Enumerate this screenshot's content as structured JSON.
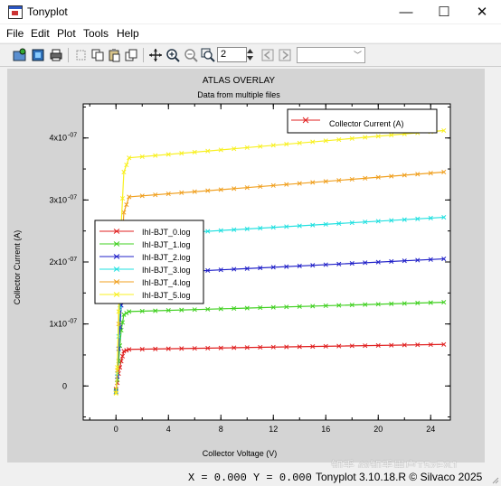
{
  "window": {
    "title": "Tonyplot",
    "minimize": "—",
    "maximize": "☐",
    "close": "✕"
  },
  "menu": [
    "File",
    "Edit",
    "Plot",
    "Tools",
    "Help"
  ],
  "toolbar": {
    "zoom_value": "2",
    "combo_value": ""
  },
  "plot": {
    "title": "ATLAS OVERLAY",
    "subtitle": "Data from multiple files"
  },
  "legend_top": {
    "label": "Collector Current (A)"
  },
  "status": {
    "coords": "X = 0.000 Y = 0.000",
    "copyright": "Tonyplot 3.10.18.R © Silvaco 2025"
  },
  "watermark": "知乎 @知乎用户T5zE8J",
  "colors": {
    "IhI-BJT_0.log": "#e02020",
    "IhI-BJT_1.log": "#40d020",
    "IhI-BJT_2.log": "#2020c8",
    "IhI-BJT_3.log": "#20e0e0",
    "IhI-BJT_4.log": "#f0a020",
    "IhI-BJT_5.log": "#f8f020"
  },
  "chart_data": {
    "type": "line",
    "title": "ATLAS OVERLAY",
    "subtitle": "Data from multiple files",
    "xlabel": "Collector Voltage (V)",
    "ylabel": "Collector Current (A)",
    "xlim": [
      -2.5,
      25.5
    ],
    "ylim": [
      -5.5e-08,
      4.55e-07
    ],
    "x_ticks": [
      0,
      4,
      8,
      12,
      16,
      20,
      24
    ],
    "y_ticks": [
      {
        "value": 0,
        "label": "0"
      },
      {
        "value": 1e-07,
        "label": "1x10"
      },
      {
        "value": 2e-07,
        "label": "2x10"
      },
      {
        "value": 3e-07,
        "label": "3x10"
      },
      {
        "value": 4e-07,
        "label": "4x10"
      }
    ],
    "y_tick_exponent": "-07",
    "grid": false,
    "series": [
      {
        "name": "IhI-BJT_0.log",
        "color": "#e02020",
        "x": [
          0,
          0.1,
          0.2,
          0.4,
          0.6,
          1,
          25
        ],
        "y": [
          -5e-09,
          5e-09,
          2e-08,
          4e-08,
          5.6e-08,
          5.9e-08,
          6.7e-08
        ]
      },
      {
        "name": "IhI-BJT_1.log",
        "color": "#40d020",
        "x": [
          0,
          0.1,
          0.2,
          0.4,
          0.6,
          1,
          25
        ],
        "y": [
          -7e-09,
          1e-08,
          4e-08,
          9e-08,
          1.15e-07,
          1.2e-07,
          1.35e-07
        ]
      },
      {
        "name": "IhI-BJT_2.log",
        "color": "#2020c8",
        "x": [
          0,
          0.1,
          0.2,
          0.4,
          0.6,
          1,
          25
        ],
        "y": [
          -9e-09,
          1.5e-08,
          6e-08,
          1.3e-07,
          1.7e-07,
          1.8e-07,
          2.05e-07
        ]
      },
      {
        "name": "IhI-BJT_3.log",
        "color": "#20e0e0",
        "x": [
          0,
          0.1,
          0.2,
          0.4,
          0.6,
          1,
          25
        ],
        "y": [
          -1e-08,
          2e-08,
          8e-08,
          1.7e-07,
          2.25e-07,
          2.42e-07,
          2.72e-07
        ]
      },
      {
        "name": "IhI-BJT_4.log",
        "color": "#f0a020",
        "x": [
          0,
          0.1,
          0.2,
          0.4,
          0.6,
          1,
          25
        ],
        "y": [
          -1.1e-08,
          2.5e-08,
          1e-07,
          2.1e-07,
          2.8e-07,
          3.05e-07,
          3.45e-07
        ]
      },
      {
        "name": "IhI-BJT_5.log",
        "color": "#f8f020",
        "x": [
          0,
          0.1,
          0.2,
          0.4,
          0.6,
          1,
          25
        ],
        "y": [
          -1.2e-08,
          3e-08,
          1.2e-07,
          2.6e-07,
          3.45e-07,
          3.68e-07,
          4.12e-07
        ]
      }
    ],
    "legend_placement": "left-middle"
  }
}
